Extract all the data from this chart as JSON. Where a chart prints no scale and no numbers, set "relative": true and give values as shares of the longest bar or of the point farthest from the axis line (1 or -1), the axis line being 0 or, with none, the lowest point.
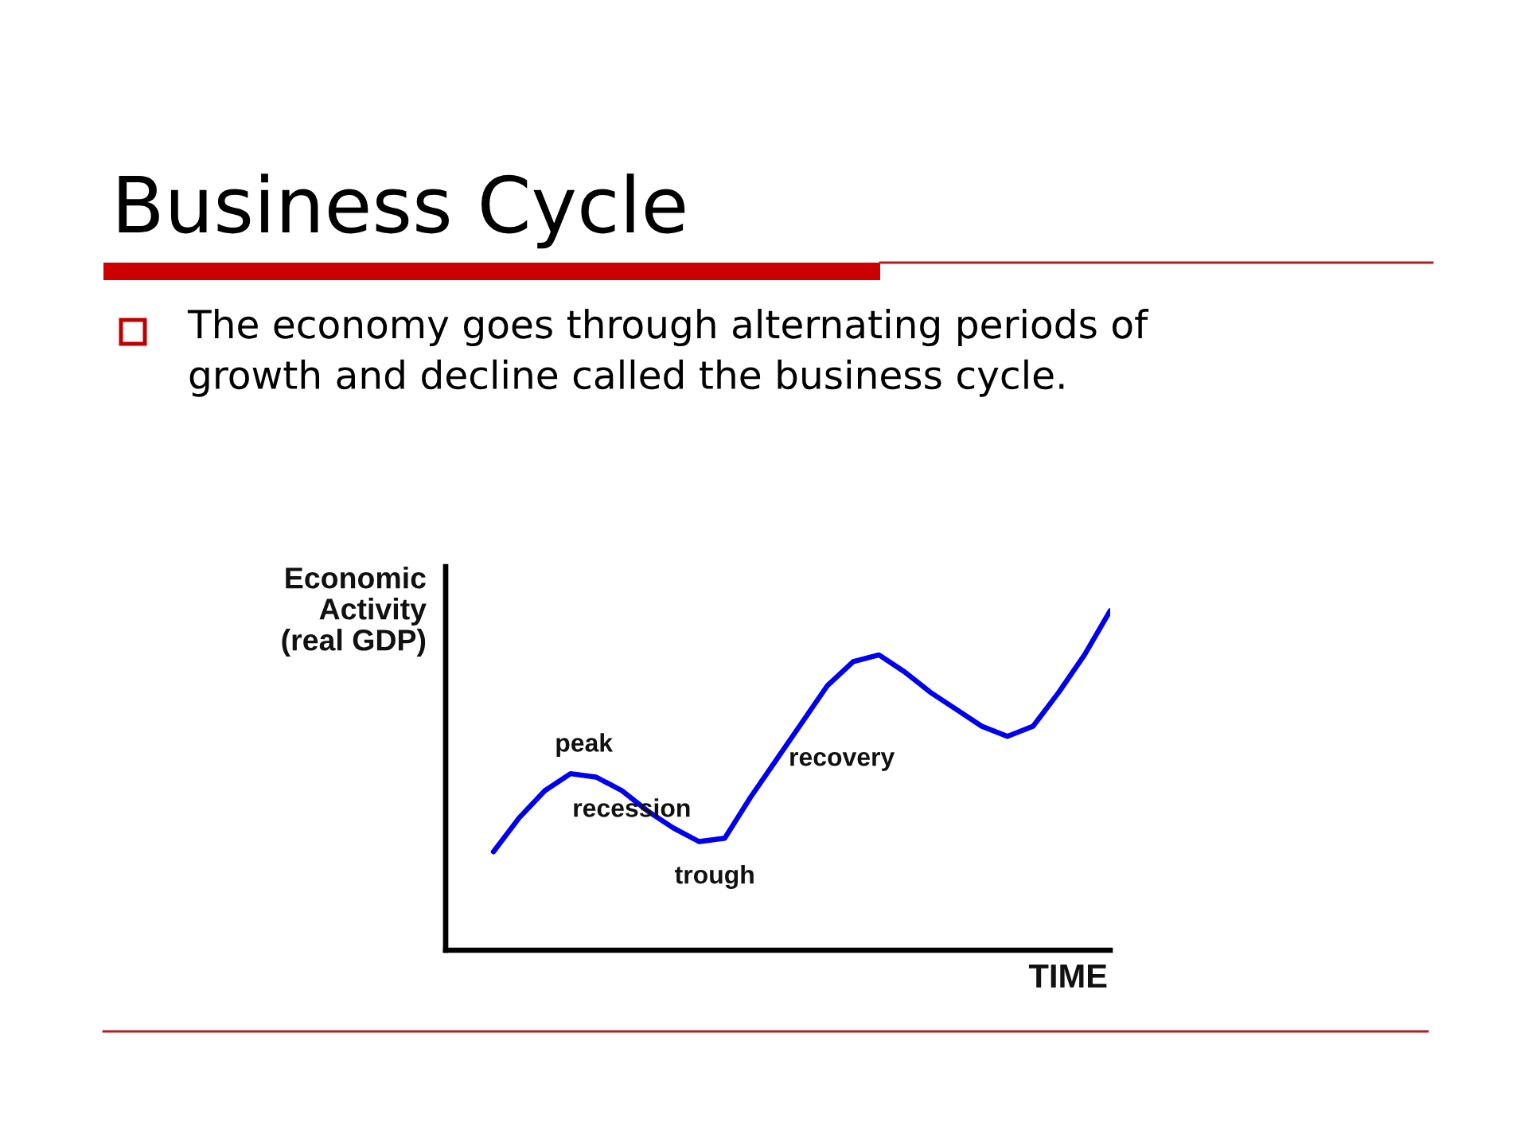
{
  "chart_data": {
    "type": "line",
    "title": "Business Cycle",
    "subtitle": "The economy goes through alternating periods of\ngrowth and decline called the business cycle.",
    "xlabel": "TIME",
    "ylabel": "Economic\nActivity\n(real GDP)",
    "annotations": [
      "peak",
      "recession",
      "trough",
      "recovery"
    ],
    "categories": [
      null,
      null,
      null,
      null,
      null,
      null,
      null,
      null,
      null,
      null,
      null,
      null,
      null,
      null,
      null,
      null,
      null,
      null,
      null,
      null,
      null,
      null,
      null,
      null,
      null
    ],
    "relative": true,
    "line_style": "solid",
    "series": [
      {
        "color": "#0000ee",
        "values": [
          0.29,
          0.39,
          0.47,
          0.52,
          0.51,
          0.47,
          0.41,
          0.36,
          0.32,
          0.33,
          0.45,
          0.56,
          0.67,
          0.78,
          0.85,
          0.87,
          0.82,
          0.76,
          0.71,
          0.66,
          0.63,
          0.66,
          0.76,
          0.87,
          1
        ]
      }
    ]
  }
}
